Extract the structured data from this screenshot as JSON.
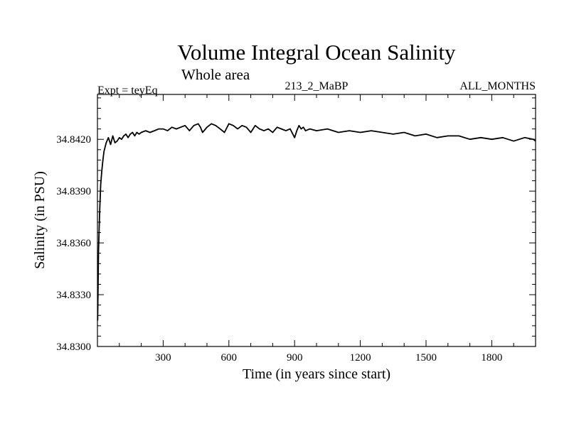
{
  "chart_data": {
    "type": "line",
    "title": "Volume Integral Ocean Salinity",
    "subtitle": "Whole area",
    "header_left": "Expt = teyEq",
    "header_center": "213_2_MaBP",
    "header_right": "ALL_MONTHS",
    "xlabel": "Time (in years since start)",
    "ylabel": "Salinity (in PSU)",
    "xlim": [
      0,
      2000
    ],
    "ylim": [
      34.83,
      34.8446
    ],
    "x_ticks": [
      300,
      600,
      900,
      1200,
      1500,
      1800
    ],
    "x_tick_labels": [
      "300",
      "600",
      "900",
      "1200",
      "1500",
      "1800"
    ],
    "y_ticks": [
      34.83,
      34.833,
      34.836,
      34.839,
      34.842
    ],
    "y_tick_labels": [
      "34.8300",
      "34.8330",
      "34.8360",
      "34.8390",
      "34.8420"
    ],
    "grid": false,
    "series": [
      {
        "name": "Salinity",
        "x": [
          1,
          5,
          10,
          15,
          20,
          25,
          30,
          40,
          50,
          60,
          70,
          80,
          90,
          100,
          110,
          120,
          130,
          140,
          150,
          160,
          170,
          180,
          190,
          200,
          220,
          240,
          260,
          280,
          300,
          320,
          340,
          360,
          380,
          400,
          420,
          440,
          460,
          470,
          480,
          500,
          520,
          540,
          560,
          580,
          600,
          620,
          640,
          660,
          680,
          700,
          720,
          740,
          760,
          780,
          800,
          820,
          840,
          860,
          880,
          900,
          910,
          920,
          930,
          940,
          950,
          970,
          1000,
          1050,
          1100,
          1150,
          1200,
          1250,
          1300,
          1350,
          1400,
          1450,
          1500,
          1550,
          1600,
          1650,
          1700,
          1750,
          1800,
          1850,
          1900,
          1950,
          1990,
          2000
        ],
        "values": [
          34.8315,
          34.8355,
          34.8378,
          34.8394,
          34.8402,
          34.8408,
          34.8413,
          34.8418,
          34.8421,
          34.8417,
          34.8422,
          34.8418,
          34.8419,
          34.8421,
          34.842,
          34.8422,
          34.8423,
          34.8421,
          34.8423,
          34.8424,
          34.8422,
          34.8424,
          34.8423,
          34.8424,
          34.8425,
          34.8424,
          34.8425,
          34.8426,
          34.8426,
          34.8425,
          34.8427,
          34.8426,
          34.8427,
          34.8428,
          34.8425,
          34.8428,
          34.8429,
          34.8427,
          34.8424,
          34.8427,
          34.8429,
          34.8428,
          34.8426,
          34.8424,
          34.8429,
          34.8428,
          34.8426,
          34.8428,
          34.8427,
          34.8424,
          34.8428,
          34.8426,
          34.8425,
          34.8426,
          34.8424,
          34.8427,
          34.8426,
          34.8425,
          34.8426,
          34.8421,
          34.8425,
          34.8428,
          34.8426,
          34.8427,
          34.8425,
          34.8426,
          34.8425,
          34.8426,
          34.8424,
          34.8425,
          34.8424,
          34.8425,
          34.8424,
          34.8423,
          34.8424,
          34.8422,
          34.8423,
          34.8421,
          34.8422,
          34.8422,
          34.842,
          34.8421,
          34.842,
          34.8421,
          34.8419,
          34.8421,
          34.842,
          34.8419
        ]
      }
    ]
  }
}
